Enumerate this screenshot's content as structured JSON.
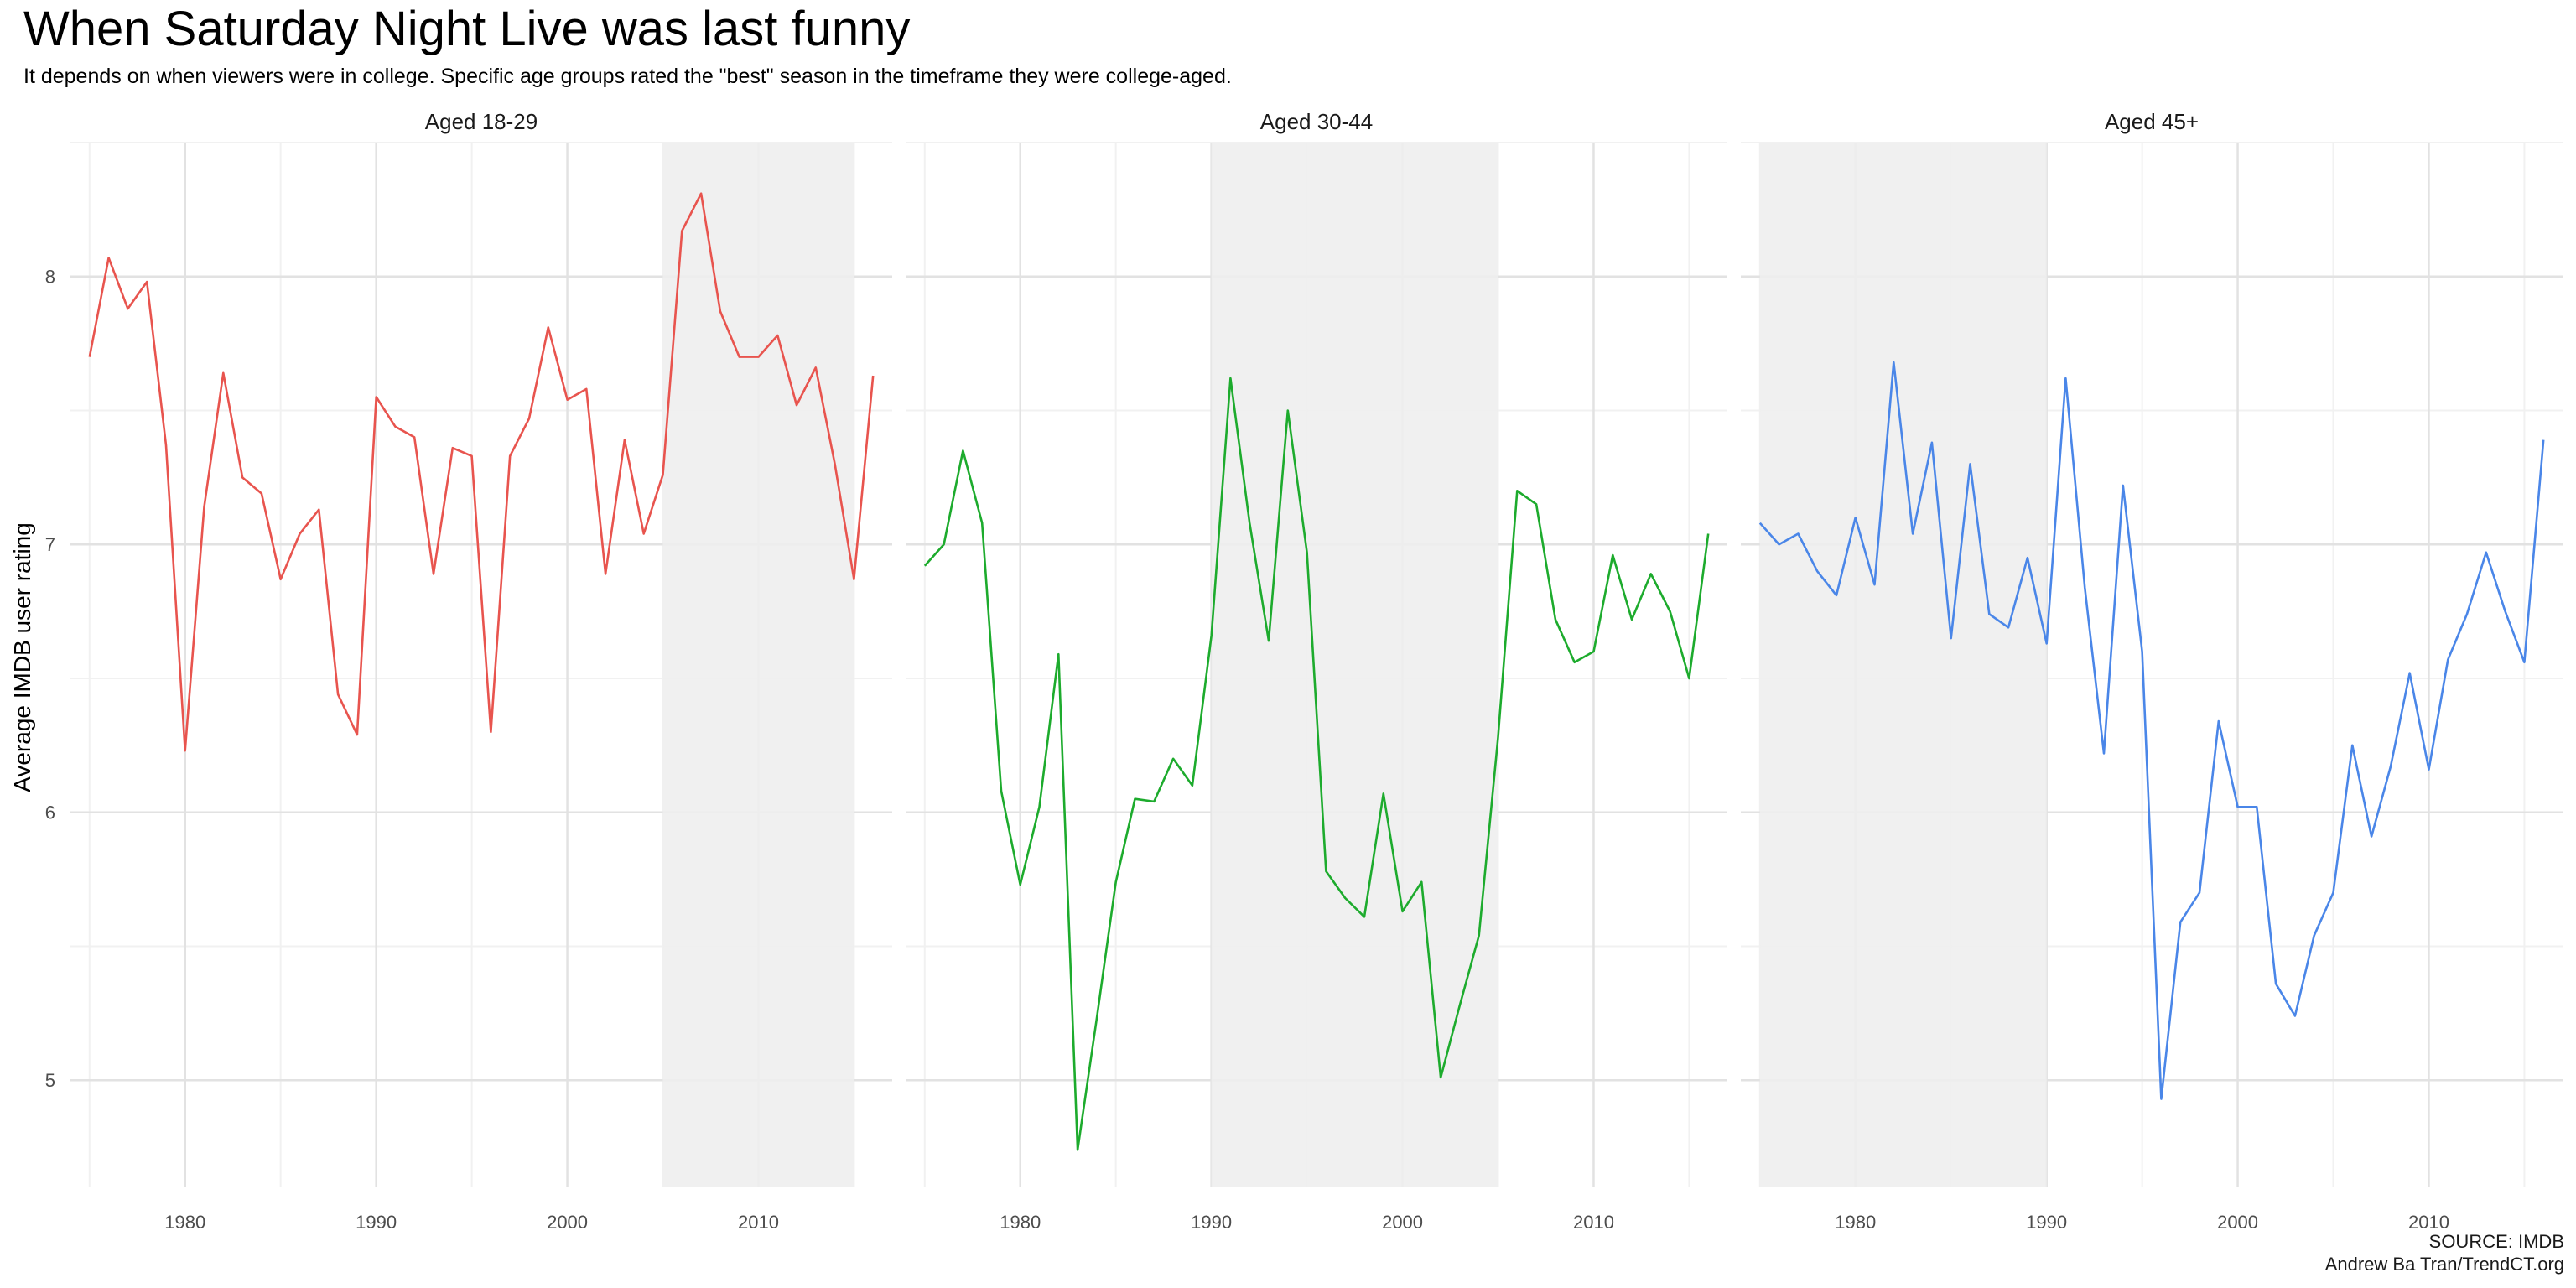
{
  "chart_data": {
    "type": "line",
    "title": "When Saturday Night Live was last funny",
    "subtitle": "It depends on when viewers were in college. Specific age groups rated the \"best\" season in the timeframe they were college-aged.",
    "ylabel": "Average IMDB user rating",
    "xlabel": "",
    "caption": [
      "SOURCE: IMDB",
      "Andrew Ba Tran/TrendCT.org"
    ],
    "xlim": [
      1974,
      2017
    ],
    "ylim": [
      4.6,
      8.5
    ],
    "x_ticks": [
      1980,
      1990,
      2000,
      2010
    ],
    "y_ticks": [
      5,
      6,
      7,
      8
    ],
    "grid": true,
    "legend": "none",
    "colors": {
      "series": [
        "#E8544E",
        "#1DAB2D",
        "#4A86E8"
      ],
      "shade": "#EEEEEE",
      "grid_major": "#E2E2E2",
      "grid_minor": "#F1F1F1"
    },
    "panels": [
      {
        "strip": "Aged 18-29",
        "shade": [
          2005,
          2015
        ],
        "x": [
          1975,
          1976,
          1977,
          1978,
          1979,
          1980,
          1981,
          1982,
          1983,
          1984,
          1985,
          1986,
          1987,
          1988,
          1989,
          1990,
          1991,
          1992,
          1993,
          1994,
          1995,
          1996,
          1997,
          1998,
          1999,
          2000,
          2001,
          2002,
          2003,
          2004,
          2005,
          2006,
          2007,
          2008,
          2009,
          2010,
          2011,
          2012,
          2013,
          2014,
          2015,
          2016
        ],
        "values": [
          7.7,
          8.07,
          7.88,
          7.98,
          7.37,
          6.23,
          7.14,
          7.64,
          7.25,
          7.19,
          6.87,
          7.04,
          7.13,
          6.44,
          6.29,
          7.55,
          7.44,
          7.4,
          6.89,
          7.36,
          7.33,
          6.3,
          7.33,
          7.47,
          7.81,
          7.54,
          7.58,
          6.89,
          7.39,
          7.04,
          7.26,
          8.17,
          8.31,
          7.87,
          7.7,
          7.7,
          7.78,
          7.52,
          7.66,
          7.3,
          6.87,
          7.63
        ]
      },
      {
        "strip": "Aged 30-44",
        "shade": [
          1990,
          2005
        ],
        "x": [
          1975,
          1976,
          1977,
          1978,
          1979,
          1980,
          1981,
          1982,
          1983,
          1984,
          1985,
          1986,
          1987,
          1988,
          1989,
          1990,
          1991,
          1992,
          1993,
          1994,
          1995,
          1996,
          1997,
          1998,
          1999,
          2000,
          2001,
          2002,
          2003,
          2004,
          2005,
          2006,
          2007,
          2008,
          2009,
          2010,
          2011,
          2012,
          2013,
          2014,
          2015,
          2016
        ],
        "values": [
          6.92,
          7.0,
          7.35,
          7.08,
          6.08,
          5.73,
          6.02,
          6.59,
          4.74,
          5.23,
          5.74,
          6.05,
          6.04,
          6.2,
          6.1,
          6.66,
          7.62,
          7.08,
          6.64,
          7.5,
          6.97,
          5.78,
          5.68,
          5.61,
          6.07,
          5.63,
          5.74,
          5.01,
          5.28,
          5.54,
          6.28,
          7.2,
          7.15,
          6.72,
          6.56,
          6.6,
          6.96,
          6.72,
          6.89,
          6.75,
          6.5,
          7.04
        ]
      },
      {
        "strip": "Aged 45+",
        "shade": [
          1975,
          1990
        ],
        "x": [
          1975,
          1976,
          1977,
          1978,
          1979,
          1980,
          1981,
          1982,
          1983,
          1984,
          1985,
          1986,
          1987,
          1988,
          1989,
          1990,
          1991,
          1992,
          1993,
          1994,
          1995,
          1996,
          1997,
          1998,
          1999,
          2000,
          2001,
          2002,
          2003,
          2004,
          2005,
          2006,
          2007,
          2008,
          2009,
          2010,
          2011,
          2012,
          2013,
          2014,
          2015,
          2016
        ],
        "values": [
          7.08,
          7.0,
          7.04,
          6.9,
          6.81,
          7.1,
          6.85,
          7.68,
          7.04,
          7.38,
          6.65,
          7.3,
          6.74,
          6.69,
          6.95,
          6.63,
          7.62,
          6.84,
          6.22,
          7.22,
          6.6,
          4.93,
          5.59,
          5.7,
          6.34,
          6.02,
          6.02,
          5.36,
          5.24,
          5.54,
          5.7,
          6.25,
          5.91,
          6.17,
          6.52,
          6.16,
          6.57,
          6.74,
          6.97,
          6.75,
          6.56,
          7.39
        ]
      }
    ]
  }
}
